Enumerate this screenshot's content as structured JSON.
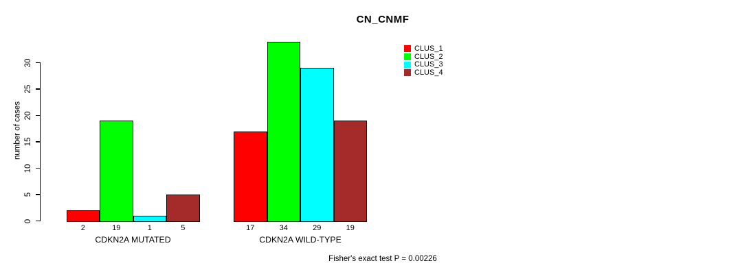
{
  "chart_data": {
    "type": "bar",
    "title": "CN_CNMF",
    "ylabel": "number of cases",
    "xlabel": "",
    "groups": [
      "CDKN2A MUTATED",
      "CDKN2A WILD-TYPE"
    ],
    "series": [
      {
        "name": "CLUS_1",
        "color": "#FF0000",
        "values": [
          2,
          17
        ]
      },
      {
        "name": "CLUS_2",
        "color": "#00FF00",
        "values": [
          19,
          34
        ]
      },
      {
        "name": "CLUS_3",
        "color": "#00FFFF",
        "values": [
          1,
          29
        ]
      },
      {
        "name": "CLUS_4",
        "color": "#A52A2A",
        "values": [
          5,
          19
        ]
      }
    ],
    "bar_value_labels": [
      [
        2,
        19,
        1,
        5
      ],
      [
        17,
        34,
        29,
        19
      ]
    ],
    "yticks": [
      0,
      5,
      10,
      15,
      20,
      25,
      30
    ],
    "ylim": [
      0,
      34
    ],
    "grid": false,
    "legend_position": "top-right",
    "legend_items": [
      "CLUS_1",
      "CLUS_2",
      "CLUS_3",
      "CLUS_4"
    ],
    "annotation": "Fisher's exact test P = 0.00226",
    "bar_border_color": "#000000",
    "background_color": "#FFFFFF"
  }
}
